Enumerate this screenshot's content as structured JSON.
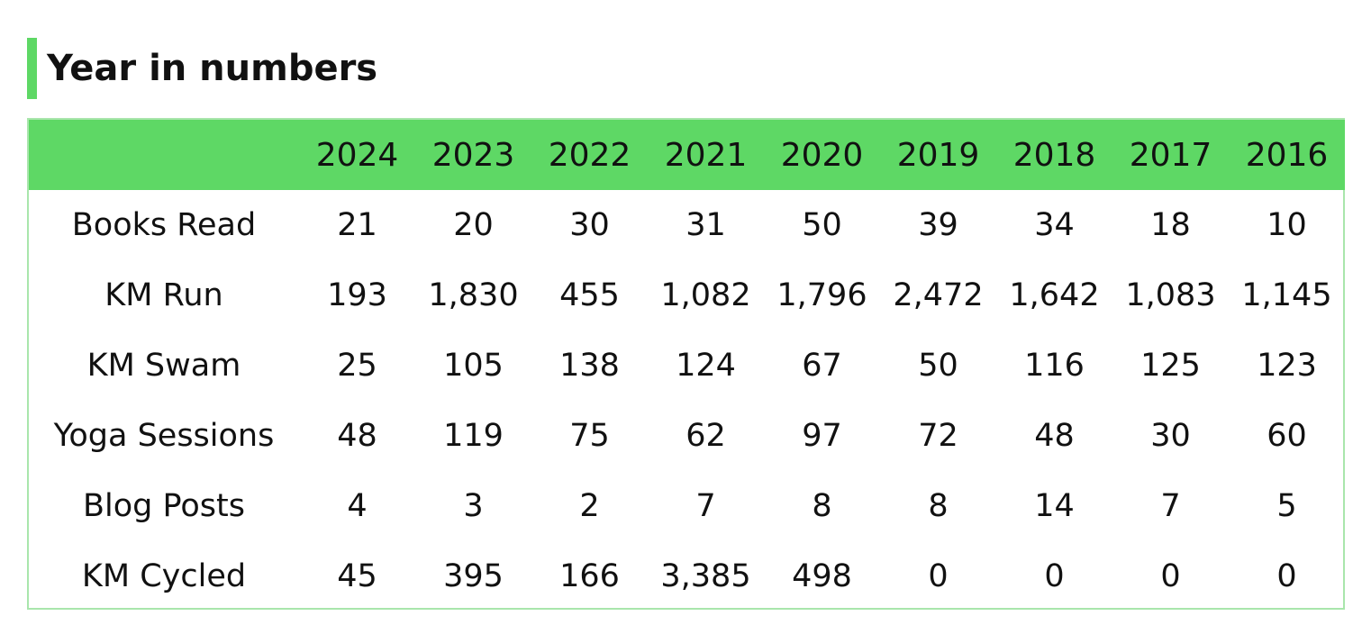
{
  "heading": {
    "title": "Year in numbers",
    "accent_color": "#5ed865"
  },
  "table": {
    "header_color": "#5ed865",
    "border_color": "#a9e6ac",
    "years": [
      "2024",
      "2023",
      "2022",
      "2021",
      "2020",
      "2019",
      "2018",
      "2017",
      "2016"
    ],
    "rows": [
      {
        "label": "Books Read",
        "values": [
          "21",
          "20",
          "30",
          "31",
          "50",
          "39",
          "34",
          "18",
          "10"
        ]
      },
      {
        "label": "KM Run",
        "values": [
          "193",
          "1,830",
          "455",
          "1,082",
          "1,796",
          "2,472",
          "1,642",
          "1,083",
          "1,145"
        ]
      },
      {
        "label": "KM Swam",
        "values": [
          "25",
          "105",
          "138",
          "124",
          "67",
          "50",
          "116",
          "125",
          "123"
        ]
      },
      {
        "label": "Yoga Sessions",
        "values": [
          "48",
          "119",
          "75",
          "62",
          "97",
          "72",
          "48",
          "30",
          "60"
        ]
      },
      {
        "label": "Blog Posts",
        "values": [
          "4",
          "3",
          "2",
          "7",
          "8",
          "8",
          "14",
          "7",
          "5"
        ]
      },
      {
        "label": "KM Cycled",
        "values": [
          "45",
          "395",
          "166",
          "3,385",
          "498",
          "0",
          "0",
          "0",
          "0"
        ]
      }
    ]
  }
}
